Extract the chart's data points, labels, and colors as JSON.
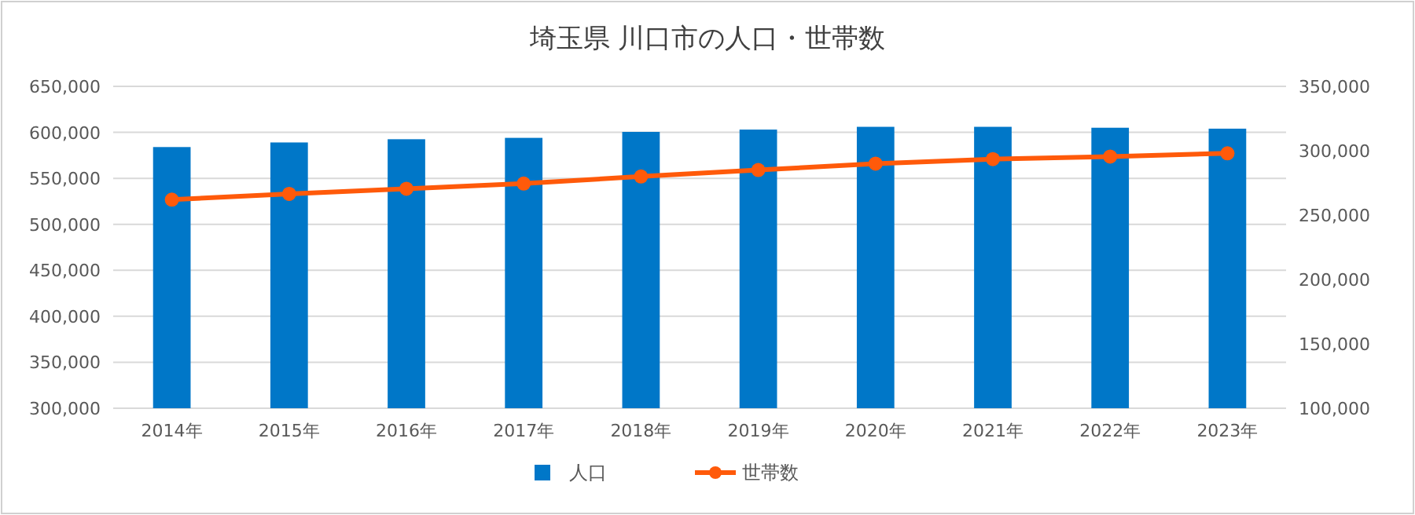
{
  "chart_data": {
    "type": "bar",
    "title": "埼玉県 川口市の人口・世帯数",
    "categories": [
      "2014年",
      "2015年",
      "2016年",
      "2017年",
      "2018年",
      "2019年",
      "2020年",
      "2021年",
      "2022年",
      "2023年"
    ],
    "series": [
      {
        "name": "人口",
        "color": "#0077c8",
        "values": [
          584000,
          589000,
          592500,
          594000,
          600500,
          603000,
          606000,
          606000,
          605000,
          604000
        ]
      },
      {
        "name": "世帯数",
        "type": "line",
        "axis": "y2",
        "color": "#ff5a0a",
        "marker": "circle",
        "values": [
          262000,
          266500,
          270500,
          274500,
          280000,
          285000,
          290000,
          293500,
          295500,
          298000
        ]
      }
    ],
    "ylim": [
      300000,
      650000
    ],
    "yticks": [
      {
        "value": 300000,
        "label": "300,000"
      },
      {
        "value": 350000,
        "label": "350,000"
      },
      {
        "value": 400000,
        "label": "400,000"
      },
      {
        "value": 450000,
        "label": "450,000"
      },
      {
        "value": 500000,
        "label": "500,000"
      },
      {
        "value": 550000,
        "label": "550,000"
      },
      {
        "value": 600000,
        "label": "600,000"
      },
      {
        "value": 650000,
        "label": "650,000"
      }
    ],
    "y2lim": [
      100000,
      350000
    ],
    "y2ticks": [
      {
        "value": 100000,
        "label": "100,000"
      },
      {
        "value": 150000,
        "label": "150,000"
      },
      {
        "value": 200000,
        "label": "200,000"
      },
      {
        "value": 250000,
        "label": "250,000"
      },
      {
        "value": 300000,
        "label": "300,000"
      },
      {
        "value": 350000,
        "label": "350,000"
      }
    ],
    "grid": "y",
    "legend": "bottom"
  }
}
